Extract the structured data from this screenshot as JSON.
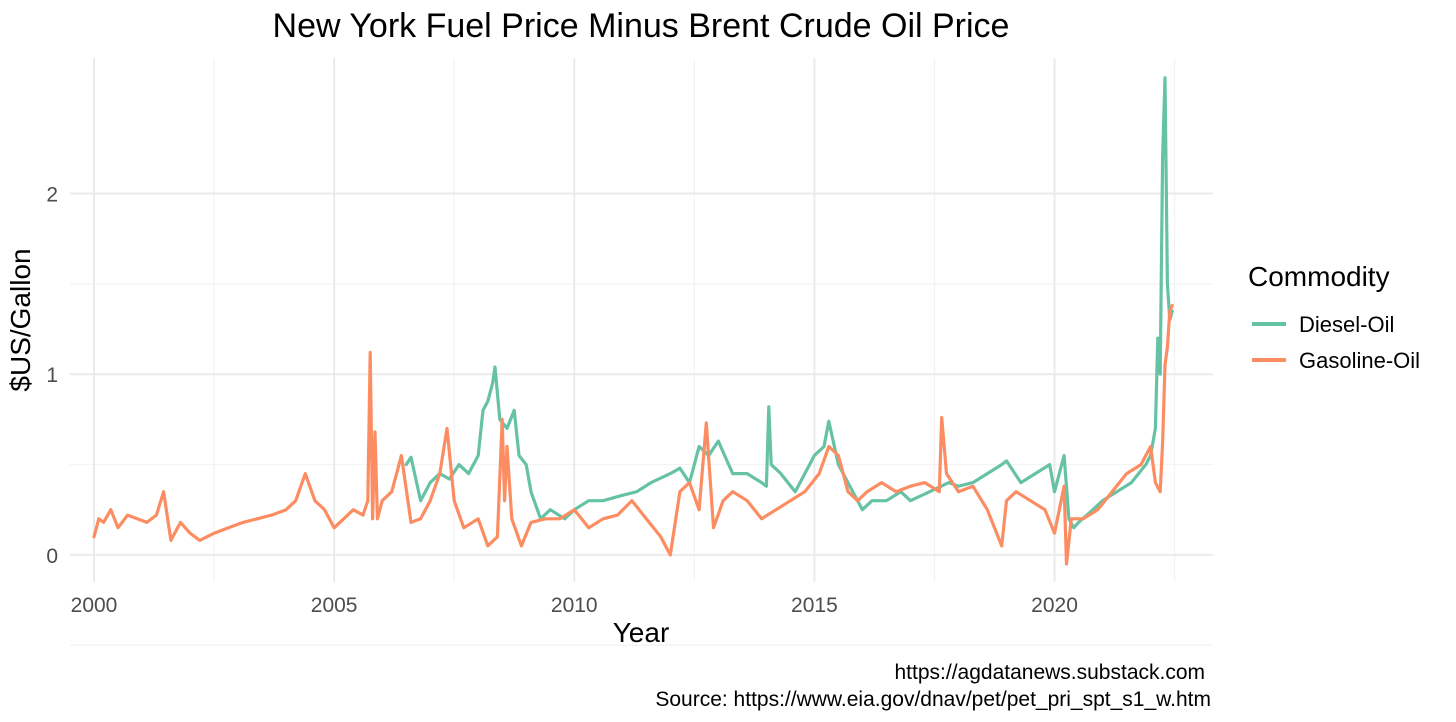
{
  "chart_data": {
    "type": "line",
    "title": "New York Fuel Price Minus Brent Crude Oil Price",
    "xlabel": "Year",
    "ylabel": "$US/Gallon",
    "x_ticks": [
      "2000",
      "2005",
      "2010",
      "2015",
      "2020"
    ],
    "y_ticks": [
      "0",
      "1",
      "2"
    ],
    "xlim": [
      1999.5,
      2023.3
    ],
    "ylim": [
      -0.15,
      2.75
    ],
    "grid": true,
    "legend": {
      "title": "Commodity",
      "placement": "right",
      "items": [
        {
          "name": "Diesel-Oil",
          "color": "#66c2a5"
        },
        {
          "name": "Gasoline-Oil",
          "color": "#fc8d62"
        }
      ]
    },
    "series": [
      {
        "name": "Diesel-Oil",
        "color": "#66c2a5",
        "x": [
          2006.5,
          2006.6,
          2006.8,
          2007.0,
          2007.2,
          2007.4,
          2007.6,
          2007.8,
          2008.0,
          2008.1,
          2008.2,
          2008.3,
          2008.35,
          2008.45,
          2008.6,
          2008.75,
          2008.85,
          2009.0,
          2009.1,
          2009.3,
          2009.5,
          2009.8,
          2010.0,
          2010.3,
          2010.6,
          2011.0,
          2011.3,
          2011.6,
          2012.0,
          2012.2,
          2012.4,
          2012.6,
          2012.8,
          2013.0,
          2013.3,
          2013.6,
          2013.9,
          2014.0,
          2014.05,
          2014.1,
          2014.3,
          2014.6,
          2014.9,
          2015.0,
          2015.2,
          2015.3,
          2015.5,
          2015.8,
          2016.0,
          2016.2,
          2016.5,
          2016.8,
          2017.0,
          2017.4,
          2017.8,
          2018.0,
          2018.3,
          2018.6,
          2018.9,
          2019.0,
          2019.3,
          2019.6,
          2019.9,
          2020.0,
          2020.2,
          2020.3,
          2020.4,
          2020.5,
          2020.8,
          2021.0,
          2021.3,
          2021.6,
          2021.9,
          2022.0,
          2022.1,
          2022.15,
          2022.2,
          2022.25,
          2022.3,
          2022.35,
          2022.4,
          2022.45
        ],
        "y": [
          0.5,
          0.54,
          0.3,
          0.4,
          0.45,
          0.42,
          0.5,
          0.45,
          0.55,
          0.8,
          0.85,
          0.95,
          1.04,
          0.75,
          0.7,
          0.8,
          0.55,
          0.5,
          0.35,
          0.2,
          0.25,
          0.2,
          0.25,
          0.3,
          0.3,
          0.33,
          0.35,
          0.4,
          0.45,
          0.48,
          0.4,
          0.6,
          0.55,
          0.63,
          0.45,
          0.45,
          0.4,
          0.38,
          0.82,
          0.5,
          0.45,
          0.35,
          0.5,
          0.55,
          0.6,
          0.74,
          0.5,
          0.35,
          0.25,
          0.3,
          0.3,
          0.35,
          0.3,
          0.35,
          0.4,
          0.38,
          0.4,
          0.45,
          0.5,
          0.52,
          0.4,
          0.45,
          0.5,
          0.35,
          0.55,
          0.2,
          0.15,
          0.18,
          0.25,
          0.3,
          0.35,
          0.4,
          0.5,
          0.55,
          0.7,
          1.2,
          1.0,
          2.2,
          2.64,
          1.5,
          1.3,
          1.35
        ]
      },
      {
        "name": "Gasoline-Oil",
        "color": "#fc8d62",
        "x": [
          2000.0,
          2000.1,
          2000.2,
          2000.35,
          2000.5,
          2000.7,
          2000.9,
          2001.1,
          2001.3,
          2001.45,
          2001.6,
          2001.8,
          2002.0,
          2002.2,
          2002.5,
          2002.8,
          2003.1,
          2003.4,
          2003.7,
          2004.0,
          2004.2,
          2004.4,
          2004.6,
          2004.8,
          2005.0,
          2005.2,
          2005.4,
          2005.6,
          2005.7,
          2005.75,
          2005.8,
          2005.85,
          2005.9,
          2006.0,
          2006.2,
          2006.4,
          2006.6,
          2006.8,
          2007.0,
          2007.2,
          2007.35,
          2007.5,
          2007.7,
          2008.0,
          2008.2,
          2008.4,
          2008.5,
          2008.55,
          2008.6,
          2008.7,
          2008.9,
          2009.1,
          2009.4,
          2009.7,
          2010.0,
          2010.3,
          2010.6,
          2010.9,
          2011.2,
          2011.5,
          2011.8,
          2012.0,
          2012.2,
          2012.4,
          2012.6,
          2012.75,
          2012.9,
          2013.1,
          2013.3,
          2013.6,
          2013.9,
          2014.2,
          2014.5,
          2014.8,
          2015.1,
          2015.3,
          2015.5,
          2015.7,
          2015.9,
          2016.1,
          2016.4,
          2016.7,
          2017.0,
          2017.3,
          2017.6,
          2017.65,
          2017.75,
          2018.0,
          2018.3,
          2018.6,
          2018.9,
          2019.0,
          2019.2,
          2019.5,
          2019.8,
          2020.0,
          2020.2,
          2020.25,
          2020.35,
          2020.6,
          2020.9,
          2021.2,
          2021.5,
          2021.8,
          2022.0,
          2022.1,
          2022.2,
          2022.25,
          2022.3,
          2022.35,
          2022.4,
          2022.45
        ],
        "y": [
          0.1,
          0.2,
          0.18,
          0.25,
          0.15,
          0.22,
          0.2,
          0.18,
          0.22,
          0.35,
          0.08,
          0.18,
          0.12,
          0.08,
          0.12,
          0.15,
          0.18,
          0.2,
          0.22,
          0.25,
          0.3,
          0.45,
          0.3,
          0.25,
          0.15,
          0.2,
          0.25,
          0.22,
          0.3,
          1.12,
          0.2,
          0.68,
          0.2,
          0.3,
          0.35,
          0.55,
          0.18,
          0.2,
          0.3,
          0.45,
          0.7,
          0.3,
          0.15,
          0.2,
          0.05,
          0.1,
          0.75,
          0.3,
          0.6,
          0.2,
          0.05,
          0.18,
          0.2,
          0.2,
          0.25,
          0.15,
          0.2,
          0.22,
          0.3,
          0.2,
          0.1,
          0.0,
          0.35,
          0.4,
          0.25,
          0.73,
          0.15,
          0.3,
          0.35,
          0.3,
          0.2,
          0.25,
          0.3,
          0.35,
          0.45,
          0.6,
          0.55,
          0.35,
          0.3,
          0.35,
          0.4,
          0.35,
          0.38,
          0.4,
          0.35,
          0.76,
          0.45,
          0.35,
          0.38,
          0.25,
          0.05,
          0.3,
          0.35,
          0.3,
          0.25,
          0.12,
          0.38,
          -0.05,
          0.2,
          0.2,
          0.25,
          0.35,
          0.45,
          0.5,
          0.6,
          0.4,
          0.35,
          0.62,
          1.05,
          1.15,
          1.35,
          1.38
        ]
      }
    ]
  },
  "caption": {
    "line1": "https://agdatanews.substack.com",
    "line2": "Source: https://www.eia.gov/dnav/pet/pet_pri_spt_s1_w.htm"
  }
}
